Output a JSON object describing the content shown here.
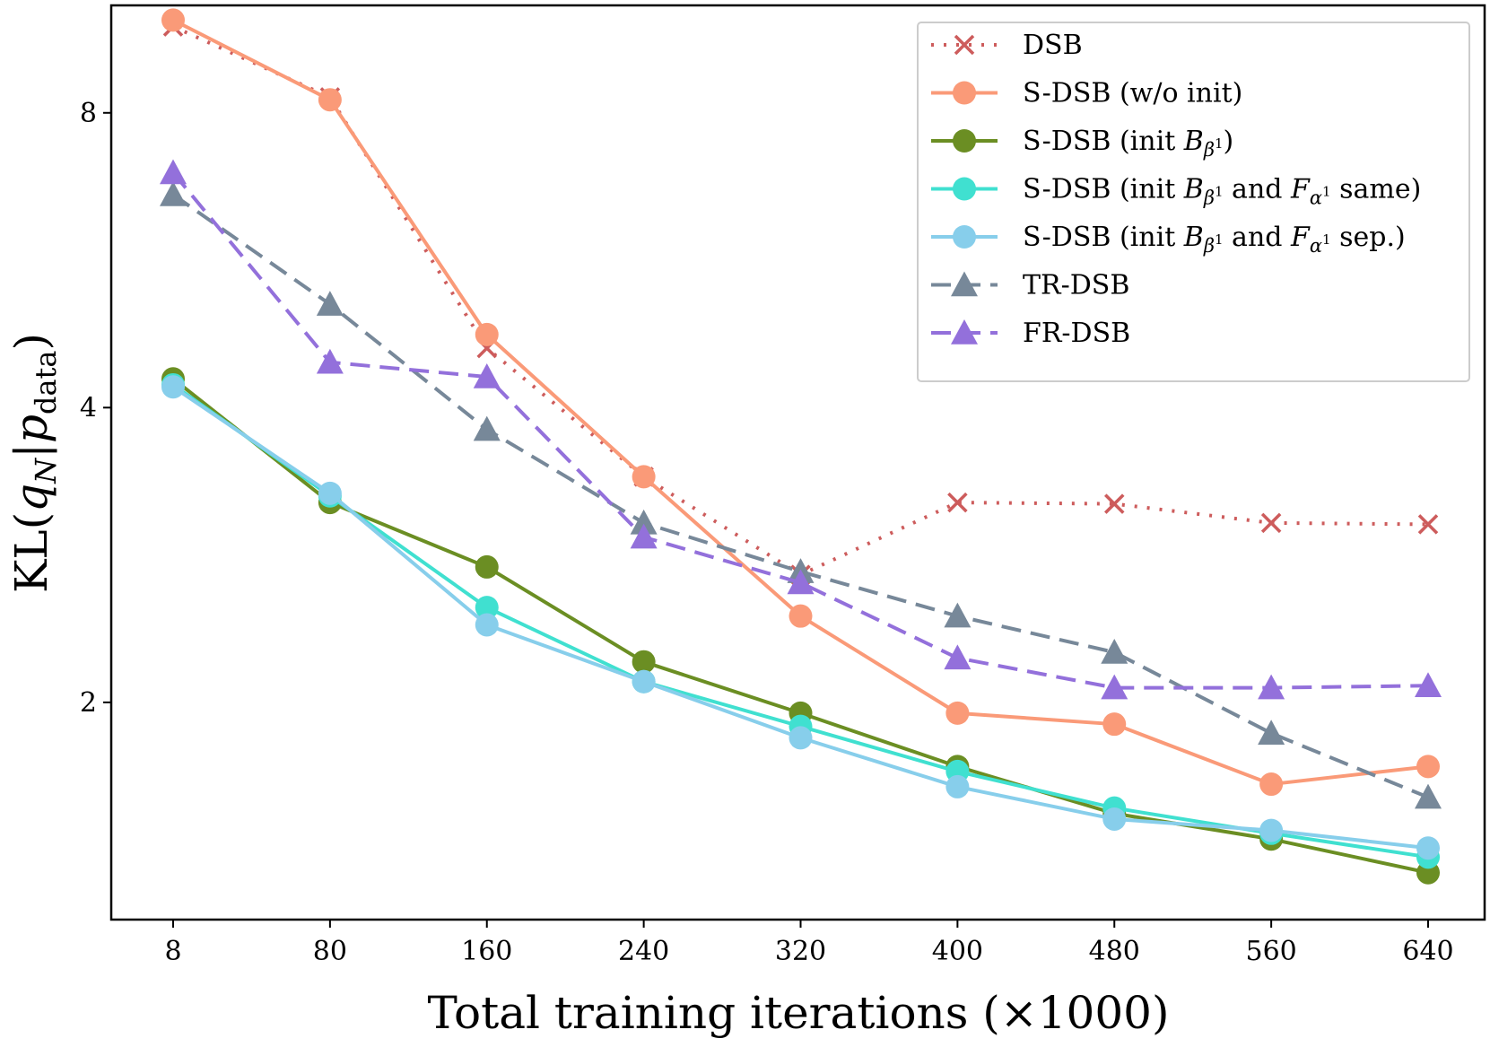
{
  "chart_data": {
    "type": "line",
    "xlabel": "Total training iterations (×1000)",
    "ylabel": "KL(q_N|p_data)",
    "ylabel_parts": {
      "base": "KL(",
      "q": "q",
      "q_sub": "N",
      "sep": "|",
      "p": "p",
      "p_sub": "data",
      "close": ")"
    },
    "y_scale": "log",
    "ylim": [
      1.2,
      10.3
    ],
    "y_ticks": [
      2,
      4,
      8
    ],
    "y_tick_labels": [
      "2",
      "4",
      "8"
    ],
    "categories": [
      "8",
      "80",
      "160",
      "240",
      "320",
      "400",
      "480",
      "560",
      "640"
    ],
    "grid": false,
    "legend_position": "top-right",
    "series": [
      {
        "name": "DSB",
        "color": "#cd5c5c",
        "line_style": "dotted",
        "marker": "x",
        "values": [
          9.8,
          8.3,
          4.6,
          3.4,
          2.7,
          3.2,
          3.19,
          3.05,
          3.04
        ]
      },
      {
        "name": "S-DSB (w/o init)",
        "color": "#fa9a78",
        "line_style": "solid",
        "marker": "circle",
        "values": [
          9.95,
          8.25,
          4.75,
          3.4,
          2.45,
          1.95,
          1.9,
          1.65,
          1.72
        ]
      },
      {
        "name": "S-DSB (init Bβ¹)",
        "color": "#6b8e23",
        "line_style": "solid",
        "marker": "circle",
        "values": [
          4.28,
          3.2,
          2.75,
          2.2,
          1.95,
          1.72,
          1.54,
          1.45,
          1.34
        ]
      },
      {
        "name": "S-DSB (init Bβ¹ and Fα¹ same)",
        "color": "#40e0d0",
        "line_style": "solid",
        "marker": "circle",
        "values": [
          4.22,
          3.25,
          2.5,
          2.1,
          1.89,
          1.7,
          1.56,
          1.47,
          1.39
        ]
      },
      {
        "name": "S-DSB (init Bβ¹ and Fα¹ sep.)",
        "color": "#87ceeb",
        "line_style": "solid",
        "marker": "circle",
        "values": [
          4.2,
          3.27,
          2.4,
          2.1,
          1.84,
          1.64,
          1.52,
          1.48,
          1.42
        ]
      },
      {
        "name": "TR-DSB",
        "color": "#778899",
        "line_style": "dashed",
        "marker": "triangle",
        "values": [
          6.6,
          5.1,
          3.8,
          3.05,
          2.72,
          2.45,
          2.25,
          1.86,
          1.6
        ]
      },
      {
        "name": "FR-DSB",
        "color": "#9370db",
        "line_style": "dashed",
        "marker": "triangle",
        "values": [
          6.95,
          4.45,
          4.3,
          2.95,
          2.65,
          2.22,
          2.07,
          2.07,
          2.08
        ]
      }
    ],
    "legend_labels": [
      {
        "prefix": "DSB"
      },
      {
        "prefix": "S-DSB (w/o init)"
      },
      {
        "prefix": "S-DSB (init ",
        "B": "B",
        "beta": "β",
        "sup1": "1",
        "suffix": ")"
      },
      {
        "prefix": "S-DSB (init ",
        "B": "B",
        "beta": "β",
        "sup1": "1",
        "mid": " and ",
        "F": "F",
        "alpha": "α",
        "sup2": "1",
        "suffix": " same)"
      },
      {
        "prefix": "S-DSB (init ",
        "B": "B",
        "beta": "β",
        "sup1": "1",
        "mid": " and ",
        "F": "F",
        "alpha": "α",
        "sup2": "1",
        "suffix": " sep.)"
      },
      {
        "prefix": "TR-DSB"
      },
      {
        "prefix": "FR-DSB"
      }
    ]
  }
}
